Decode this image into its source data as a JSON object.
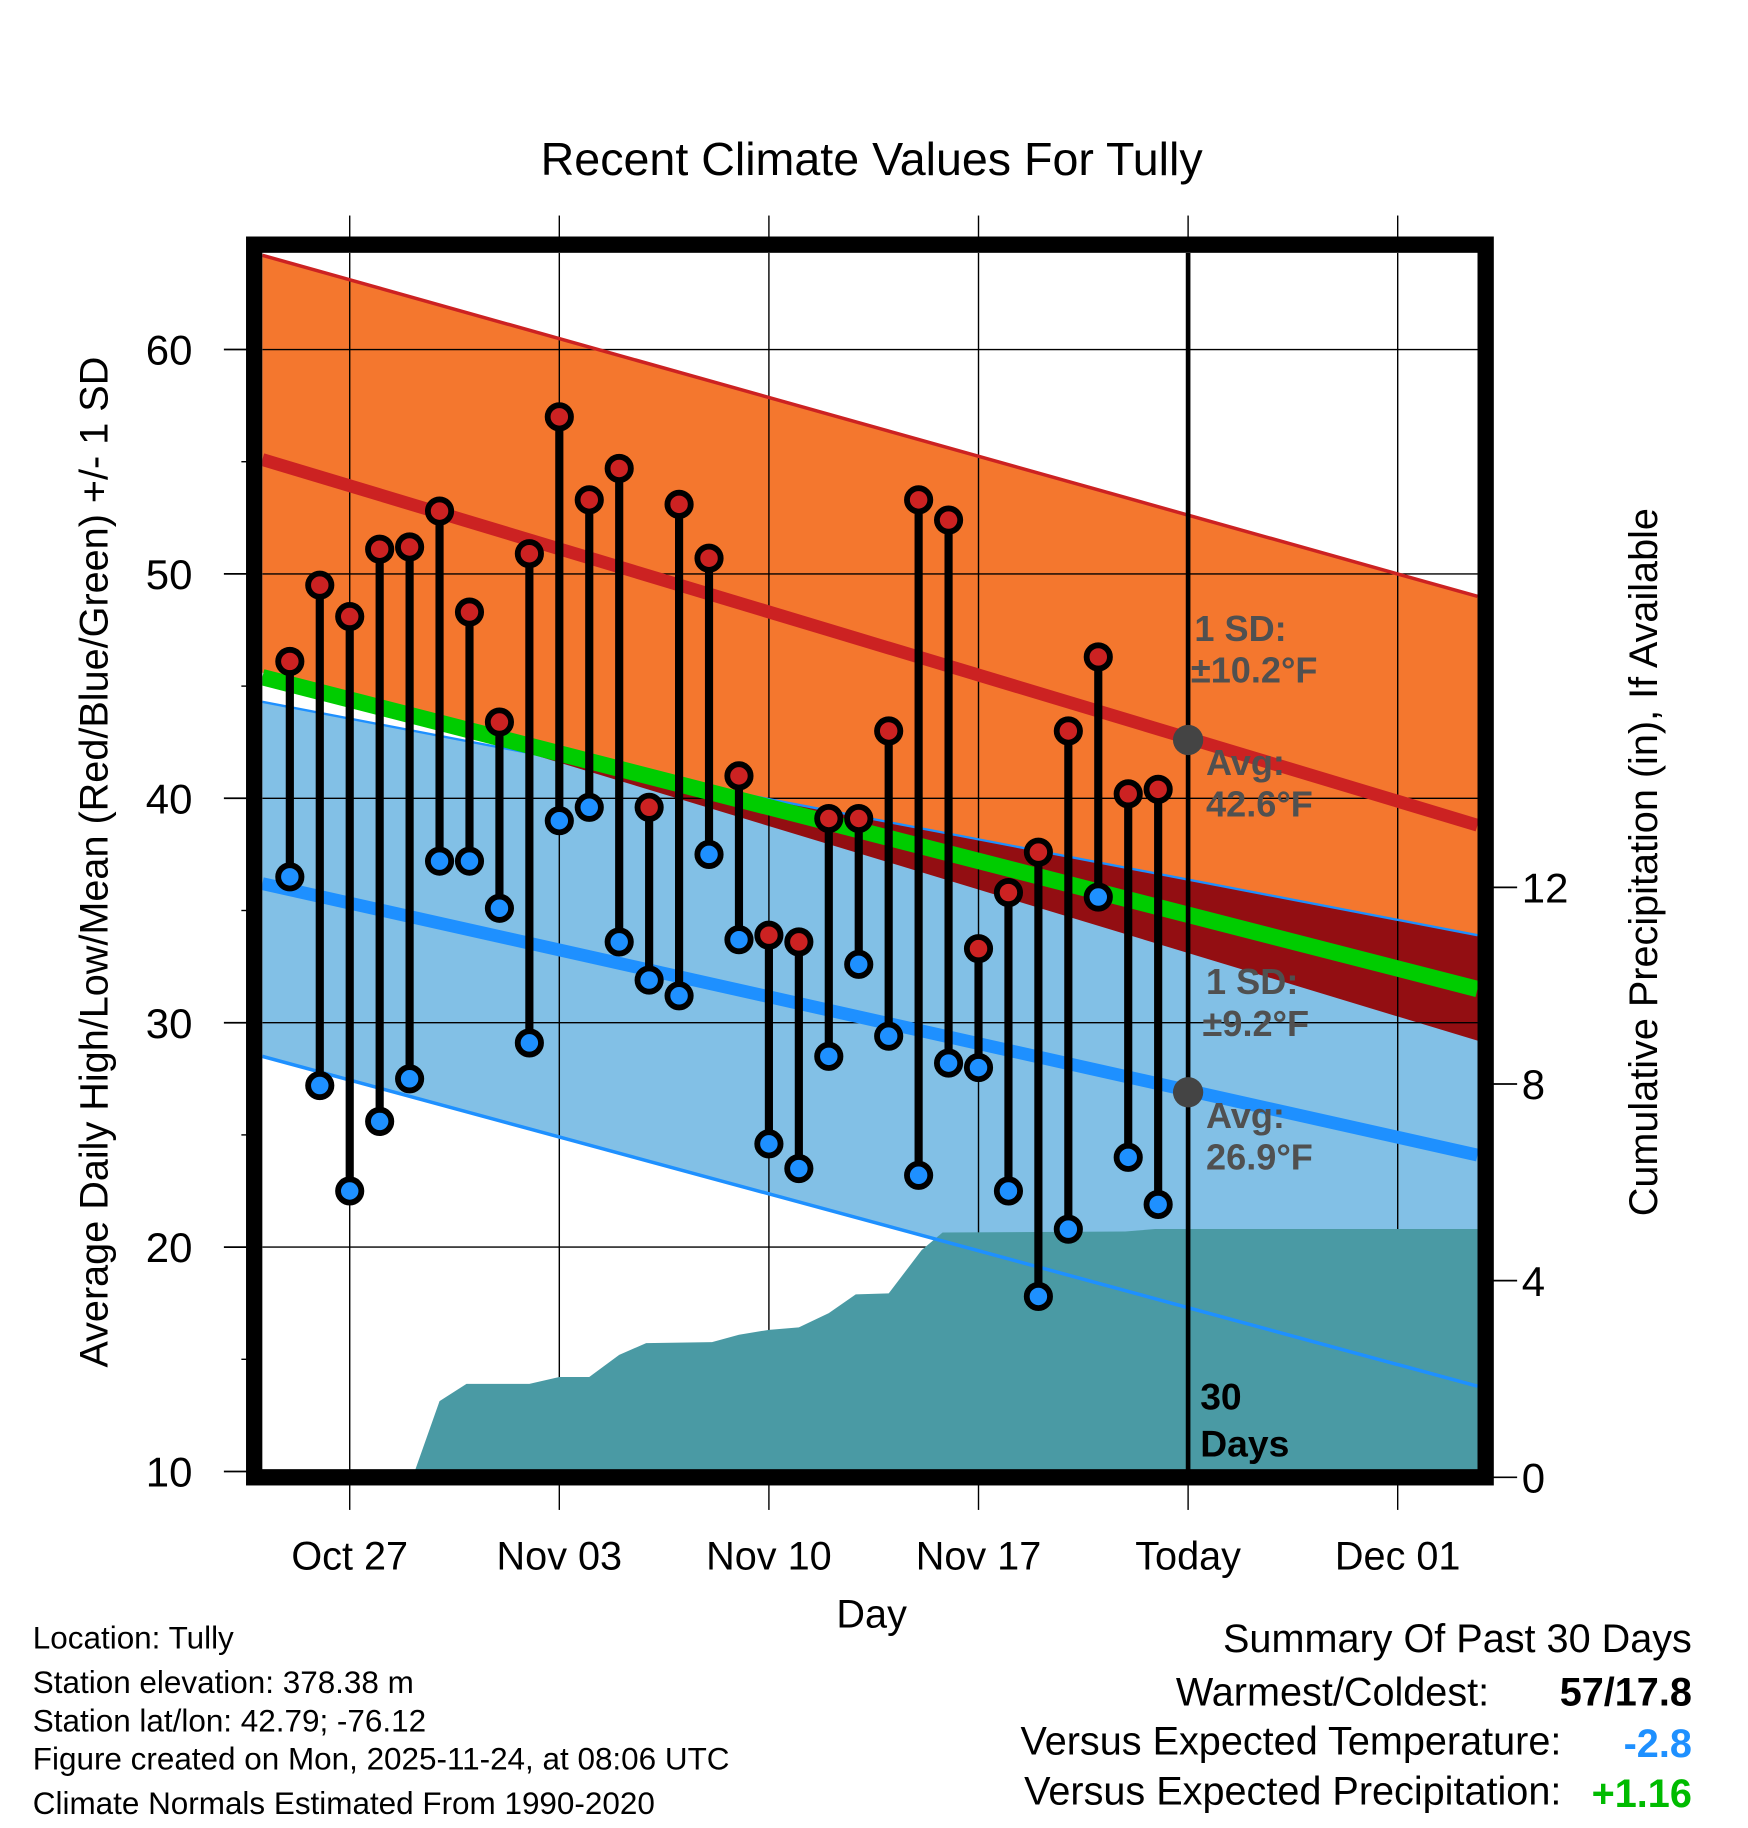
{
  "chart_data": {
    "type": "line",
    "title": "Recent Climate Values For Tully",
    "xlabel": "Day",
    "ylabel": "Average Daily High/Low/Mean (Red/Blue/Green) +/- 1 SD",
    "y2label": "Cumulative Precipitation (in), If Available",
    "ylim": [
      10,
      64.6
    ],
    "y2lim": [
      0,
      13
    ],
    "yticks": [
      10,
      20,
      30,
      40,
      50,
      60
    ],
    "y2ticks": [
      0,
      4,
      8,
      12
    ],
    "xlim_days_from_oct25": [
      -0.9,
      39.7
    ],
    "xticks": [
      {
        "label": "Oct 27",
        "day": 2
      },
      {
        "label": "Nov 03",
        "day": 9
      },
      {
        "label": "Nov 10",
        "day": 16
      },
      {
        "label": "Nov 17",
        "day": 23
      },
      {
        "label": "Today",
        "day": 30
      },
      {
        "label": "Dec 01",
        "day": 37
      }
    ],
    "grid": true,
    "dates": [
      "Oct 25",
      "Oct 26",
      "Oct 27",
      "Oct 28",
      "Oct 29",
      "Oct 30",
      "Oct 31",
      "Nov 01",
      "Nov 02",
      "Nov 03",
      "Nov 04",
      "Nov 05",
      "Nov 06",
      "Nov 07",
      "Nov 08",
      "Nov 09",
      "Nov 10",
      "Nov 11",
      "Nov 12",
      "Nov 13",
      "Nov 14",
      "Nov 15",
      "Nov 16",
      "Nov 17",
      "Nov 18",
      "Nov 19",
      "Nov 20",
      "Nov 21",
      "Nov 22",
      "Nov 23"
    ],
    "series": [
      {
        "name": "Daily High",
        "color": "#cc2222",
        "values": [
          46.1,
          49.5,
          48.1,
          51.1,
          51.2,
          52.8,
          48.3,
          43.4,
          50.9,
          57.0,
          53.3,
          54.7,
          39.6,
          53.1,
          50.7,
          41.0,
          33.9,
          33.6,
          39.1,
          39.1,
          43.0,
          53.3,
          52.4,
          33.3,
          35.8,
          37.6,
          43.0,
          46.3,
          40.2,
          40.4
        ]
      },
      {
        "name": "Daily Low",
        "color": "#1e90ff",
        "values": [
          36.5,
          27.2,
          22.5,
          25.6,
          27.5,
          37.2,
          37.2,
          35.1,
          29.1,
          39.0,
          39.6,
          33.6,
          31.9,
          31.2,
          37.5,
          33.7,
          24.6,
          23.5,
          28.5,
          32.6,
          29.4,
          23.2,
          28.2,
          28.0,
          22.5,
          17.8,
          20.8,
          35.6,
          24.0,
          21.9
        ]
      }
    ],
    "normals": {
      "high_avg": [
        55.1,
        38.8
      ],
      "high_upper": [
        64.2,
        49.0
      ],
      "high_lower": [
        45.6,
        29.2
      ],
      "low_avg": [
        36.2,
        24.1
      ],
      "low_upper": [
        44.3,
        33.9
      ],
      "low_lower": [
        28.5,
        13.8
      ],
      "mean": [
        45.4,
        31.5
      ]
    },
    "precip_cumulative": [
      [
        4.1,
        0
      ],
      [
        5.0,
        1.55
      ],
      [
        5.9,
        1.9
      ],
      [
        8.0,
        1.9
      ],
      [
        9.0,
        2.04
      ],
      [
        10.0,
        2.04
      ],
      [
        11.0,
        2.49
      ],
      [
        11.9,
        2.73
      ],
      [
        14.1,
        2.75
      ],
      [
        15.0,
        2.9
      ],
      [
        16.0,
        3.0
      ],
      [
        17.0,
        3.05
      ],
      [
        18.0,
        3.34
      ],
      [
        18.9,
        3.72
      ],
      [
        20.0,
        3.74
      ],
      [
        21.1,
        4.62
      ],
      [
        21.8,
        4.98
      ],
      [
        27.9,
        5.0
      ],
      [
        28.9,
        5.05
      ],
      [
        39.7,
        5.05
      ]
    ],
    "annotations": {
      "high_sd_label": "1 SD:",
      "high_sd_value": "±10.2°F",
      "high_avg_label": "Avg:",
      "high_avg_value": "42.6°F",
      "high_avg_today": 42.6,
      "low_sd_label": "1 SD:",
      "low_sd_value": "±9.2°F",
      "low_avg_label": "Avg:",
      "low_avg_value": "26.9°F",
      "low_avg_today": 26.9,
      "days_count": "30",
      "days_word": "Days"
    },
    "colors": {
      "high_band": "#f4772e",
      "low_band": "#82c0e6",
      "overlap": "#930e12",
      "mean": "#00cc00",
      "high_line": "#cc2222",
      "low_line": "#1e90ff",
      "precip": "#4a9aa4"
    }
  },
  "footer": {
    "location": "Location: Tully",
    "elevation": "Station elevation: 378.38 m",
    "latlon": "Station lat/lon: 42.79; -76.12",
    "created": "Figure created on Mon, 2025-11-24, at 08:06 UTC",
    "normals": "Climate Normals Estimated From 1990-2020"
  },
  "summary": {
    "title": "Summary Of Past 30 Days",
    "warmest_label": "Warmest/Coldest:",
    "warmest_value": "57/17.8",
    "temp_label": "Versus Expected Temperature:",
    "temp_value": "-2.8",
    "temp_color": "#1e90ff",
    "precip_label": "Versus Expected Precipitation:",
    "precip_value": "+1.16",
    "precip_color": "#00bb00"
  }
}
